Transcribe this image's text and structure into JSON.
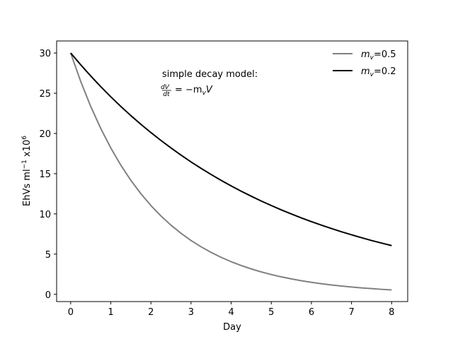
{
  "chart_data": {
    "type": "line",
    "title": "",
    "xlabel": "Day",
    "ylabel": {
      "base": "EhVs ml",
      "exp1": "−1",
      "mid": " x10",
      "exp2": "6"
    },
    "xlim": [
      -0.35,
      8.4
    ],
    "ylim": [
      -0.9,
      31.5
    ],
    "xticks": [
      0,
      1,
      2,
      3,
      4,
      5,
      6,
      7,
      8
    ],
    "yticks": [
      0,
      5,
      10,
      15,
      20,
      25,
      30
    ],
    "grid": false,
    "legend_position": "top-right",
    "annotation": {
      "line1": "simple decay model:",
      "frac_num": "dV",
      "frac_den": "dt",
      "eq_rest": "= −m",
      "eq_sub": "v",
      "eq_var": "V"
    },
    "series": [
      {
        "name": "mv=0.5",
        "legend": {
          "var": "m",
          "sub": "v",
          "value": "=0.5"
        },
        "color": "#808080",
        "x": [
          0,
          0.25,
          0.5,
          0.75,
          1,
          1.25,
          1.5,
          1.75,
          2,
          2.25,
          2.5,
          2.75,
          3,
          3.25,
          3.5,
          3.75,
          4,
          4.25,
          4.5,
          4.75,
          5,
          5.25,
          5.5,
          5.75,
          6,
          6.25,
          6.5,
          6.75,
          7,
          7.25,
          7.5,
          7.75,
          8
        ],
        "y": [
          30.0,
          26.47,
          23.36,
          20.62,
          18.2,
          16.06,
          14.17,
          12.51,
          11.04,
          9.74,
          8.6,
          7.59,
          6.69,
          5.91,
          5.21,
          4.6,
          4.06,
          3.58,
          3.16,
          2.79,
          2.46,
          2.17,
          1.92,
          1.69,
          1.49,
          1.32,
          1.16,
          1.03,
          0.91,
          0.8,
          0.71,
          0.62,
          0.55
        ]
      },
      {
        "name": "mv=0.2",
        "legend": {
          "var": "m",
          "sub": "v",
          "value": "=0.2"
        },
        "color": "#000000",
        "x": [
          0,
          0.25,
          0.5,
          0.75,
          1,
          1.25,
          1.5,
          1.75,
          2,
          2.25,
          2.5,
          2.75,
          3,
          3.25,
          3.5,
          3.75,
          4,
          4.25,
          4.5,
          4.75,
          5,
          5.25,
          5.5,
          5.75,
          6,
          6.25,
          6.5,
          6.75,
          7,
          7.25,
          7.5,
          7.75,
          8
        ],
        "y": [
          30.0,
          28.54,
          27.15,
          25.82,
          24.56,
          23.36,
          22.22,
          21.14,
          20.11,
          19.13,
          18.2,
          17.31,
          16.46,
          15.66,
          14.9,
          14.17,
          13.48,
          12.82,
          12.2,
          11.6,
          11.04,
          10.5,
          9.99,
          9.5,
          9.04,
          8.6,
          8.18,
          7.78,
          7.4,
          7.04,
          6.69,
          6.37,
          6.06
        ]
      }
    ]
  }
}
